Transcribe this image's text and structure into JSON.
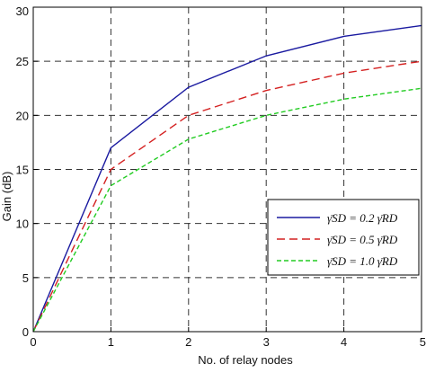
{
  "chart_data": {
    "type": "line",
    "title": "",
    "xlabel": "No. of relay nodes",
    "ylabel": "Gain (dB)",
    "xlim": [
      0,
      5
    ],
    "ylim": [
      0,
      30
    ],
    "xticks": [
      0,
      1,
      2,
      3,
      4,
      5
    ],
    "yticks": [
      0,
      5,
      10,
      15,
      20,
      25,
      30
    ],
    "xtick_labels": [
      "0",
      "1",
      "2",
      "3",
      "4",
      "5"
    ],
    "ytick_labels": [
      "0",
      "5",
      "10",
      "15",
      "20",
      "25",
      "30"
    ],
    "grid": true,
    "legend_position": "right",
    "series": [
      {
        "name": "γ̄SD = 0.2 γ̄RD",
        "color": "#1a1aa0",
        "style": "solid",
        "x": [
          0,
          1,
          2,
          3,
          4,
          5
        ],
        "y": [
          0,
          17.0,
          22.6,
          25.5,
          27.3,
          28.3
        ]
      },
      {
        "name": "γ̄SD = 0.5 γ̄RD",
        "color": "#d42020",
        "style": "dashed",
        "x": [
          0,
          1,
          2,
          3,
          4,
          5
        ],
        "y": [
          0,
          15.0,
          20.0,
          22.3,
          23.9,
          25.0
        ]
      },
      {
        "name": "γ̄SD = 1.0 γ̄RD",
        "color": "#22cc22",
        "style": "dashed-fine",
        "x": [
          0,
          1,
          2,
          3,
          4,
          5
        ],
        "y": [
          0,
          13.5,
          17.8,
          20.0,
          21.5,
          22.5
        ]
      }
    ]
  }
}
